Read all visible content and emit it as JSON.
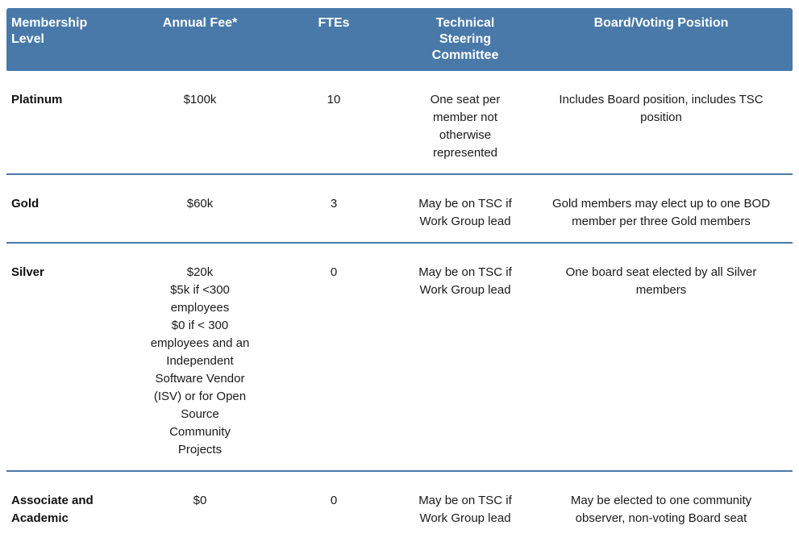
{
  "page": {
    "background": "#ffffff",
    "accent_blue": "#4879a9",
    "divider_blue": "#4a79a8",
    "header_text_color": "#ffffff",
    "body_text_color": "#1a1a1a"
  },
  "table": {
    "columns": [
      {
        "id": "level",
        "label": "Membership Level"
      },
      {
        "id": "fee",
        "label": "Annual Fee*"
      },
      {
        "id": "ftes",
        "label": "FTEs"
      },
      {
        "id": "tsc",
        "label": "Technical Steering Committee"
      },
      {
        "id": "board",
        "label": "Board/Voting Position"
      }
    ],
    "rows": [
      {
        "level": "Platinum",
        "fee": "$100k",
        "ftes": "10",
        "tsc": "One seat per member not otherwise represented",
        "board": "Includes Board position, includes TSC position"
      },
      {
        "level": "Gold",
        "fee": "$60k",
        "ftes": "3",
        "tsc": "May be on TSC if Work Group lead",
        "board": "Gold members may elect up to one BOD member per three Gold members"
      },
      {
        "level": "Silver",
        "fee": "$20k\n$5k if <300 employees\n$0 if < 300 employees and an Independent Software Vendor (ISV) or for Open Source Community Projects",
        "ftes": "0",
        "tsc": "May be on TSC if Work Group lead",
        "board": "One board seat elected by all Silver members"
      },
      {
        "level": "Associate and Academic",
        "fee": "$0",
        "ftes": "0",
        "tsc": "May be on TSC if Work Group lead",
        "board": "May be elected to one community observer, non-voting Board seat"
      }
    ]
  }
}
